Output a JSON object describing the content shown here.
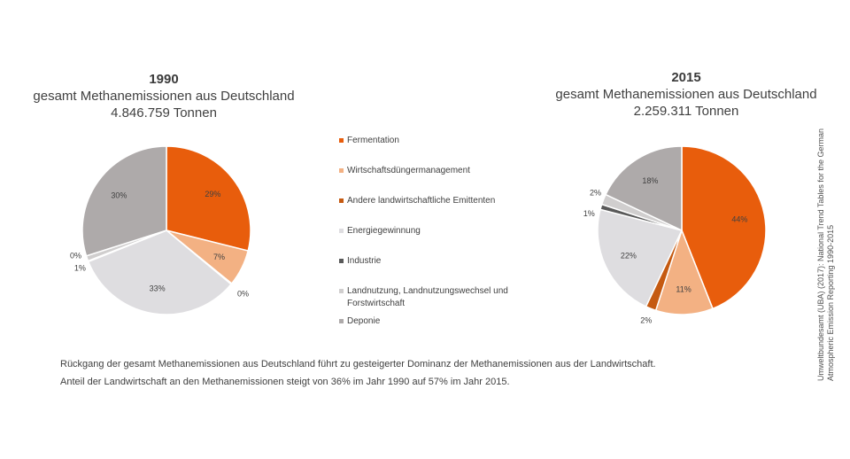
{
  "chart_data": [
    {
      "type": "pie",
      "title_year": "1990",
      "title_line1": "gesamt Methanemissionen aus Deutschland",
      "title_line2": "4.846.759 Tonnen",
      "categories": [
        "Fermentation",
        "Wirtschaftsdüngermanagement",
        "Andere landwirtschaftliche Emittenten",
        "Energiegewinnung",
        "Industrie",
        "Landnutzung, Landnutzungswechsel und Forstwirtschaft",
        "Deponie"
      ],
      "values": [
        29,
        7,
        0,
        33,
        0,
        1,
        30
      ],
      "labels": [
        "29%",
        "7%",
        "0%",
        "33%",
        "0%",
        "1%",
        "30%"
      ],
      "colors": [
        "#E85D0C",
        "#F3B183",
        "#C55A11",
        "#DEDDE0",
        "#595959",
        "#D0CECE",
        "#AEAAAA"
      ]
    },
    {
      "type": "pie",
      "title_year": "2015",
      "title_line1": "gesamt Methanemissionen aus Deutschland",
      "title_line2": "2.259.311 Tonnen",
      "categories": [
        "Fermentation",
        "Wirtschaftsdüngermanagement",
        "Andere landwirtschaftliche Emittenten",
        "Energiegewinnung",
        "Industrie",
        "Landnutzung, Landnutzungswechsel und Forstwirtschaft",
        "Deponie"
      ],
      "values": [
        44,
        11,
        2,
        22,
        1,
        2,
        18
      ],
      "labels": [
        "44%",
        "11%",
        "2%",
        "22%",
        "1%",
        "2%",
        "18%"
      ],
      "colors": [
        "#E85D0C",
        "#F3B183",
        "#C55A11",
        "#DEDDE0",
        "#595959",
        "#D0CECE",
        "#AEAAAA"
      ]
    }
  ],
  "legend": [
    {
      "label": "Fermentation",
      "color": "#E85D0C"
    },
    {
      "label": "Wirtschaftsdüngermanagement",
      "color": "#F3B183"
    },
    {
      "label": "Andere landwirtschaftliche Emittenten",
      "color": "#C55A11"
    },
    {
      "label": "Energiegewinnung",
      "color": "#DEDDE0"
    },
    {
      "label": "Industrie",
      "color": "#595959"
    },
    {
      "label": "Landnutzung, Landnutzungswechsel und Forstwirtschaft",
      "color": "#D0CECE"
    },
    {
      "label": "Deponie",
      "color": "#AEAAAA"
    }
  ],
  "caption": {
    "line1": "Rückgang der gesamt Methanemissionen aus Deutschland führt zu gesteigerter  Dominanz der Methanemissionen aus der Landwirtschaft.",
    "line2": "Anteil der Landwirtschaft an den Methanemissionen steigt von 36% im Jahr 1990 auf 57% im Jahr 2015."
  },
  "source": {
    "line1": "Umweltbundesamt (UBA) (2017): National Trend Tables for the German",
    "line2": "Atmospheric Emission Reporting 1990-2015"
  }
}
